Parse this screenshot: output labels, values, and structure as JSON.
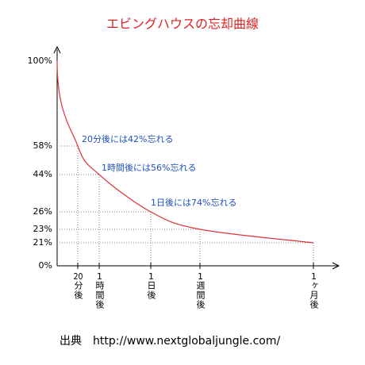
{
  "chart_data": {
    "type": "line",
    "title": "エビングハウスの忘却曲線",
    "categories": [
      null,
      "20分後",
      "1時間後",
      "1日後",
      "1週間後",
      "1ヶ月後"
    ],
    "series": [
      {
        "color": "#e0303a",
        "values": [
          100,
          58,
          44,
          26,
          23,
          21
        ]
      }
    ],
    "yticks": [
      {
        "value": 0,
        "label": "0%"
      },
      {
        "value": 21,
        "label": "21%"
      },
      {
        "value": 23,
        "label": "23%"
      },
      {
        "value": 26,
        "label": "26%"
      },
      {
        "value": 44,
        "label": "44%"
      },
      {
        "value": 58,
        "label": "58%"
      },
      {
        "value": 100,
        "label": "100%"
      }
    ],
    "annotations": [
      "20分後には42%忘れる",
      "1時間後には56%忘れる",
      "1日後には74%忘れる"
    ],
    "source": "出典　http://www.nextglobaljungle.com/"
  }
}
